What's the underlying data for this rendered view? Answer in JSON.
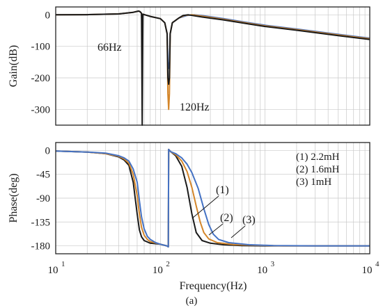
{
  "caption": "(a)",
  "chart_data": [
    {
      "type": "line",
      "name": "gain",
      "ylabel": "Gain(dB)",
      "xscale": "log",
      "xlim": [
        10,
        10000
      ],
      "ylim": [
        -350,
        25
      ],
      "yticks": [
        0,
        -100,
        -200,
        -300
      ],
      "ytick_labels": [
        "0",
        "-100",
        "-200",
        "-300"
      ],
      "grid": true,
      "annotations": [
        {
          "text": "66Hz",
          "x": 20,
          "y": -100
        },
        {
          "text": "120Hz",
          "x": 200,
          "y": -300
        }
      ],
      "series": [
        {
          "color": "#4472c4",
          "x": [
            10,
            20,
            40,
            55,
            62,
            64,
            66,
            67,
            68,
            80,
            100,
            110,
            116,
            118,
            120,
            122,
            124,
            130,
            150,
            180,
            210,
            260,
            400,
            700,
            1000,
            2000,
            5000,
            10000
          ],
          "y": [
            0,
            0.5,
            3,
            8,
            12,
            10,
            5,
            -60,
            2,
            -5,
            -12,
            -25,
            -60,
            -150,
            -170,
            -150,
            -60,
            -25,
            -10,
            -2,
            0,
            -3,
            -12,
            -25,
            -33,
            -45,
            -62,
            -74
          ]
        },
        {
          "color": "#d4862a",
          "x": [
            10,
            20,
            40,
            55,
            62,
            64,
            66,
            67,
            68,
            80,
            100,
            110,
            116,
            118,
            120,
            122,
            124,
            130,
            150,
            170,
            200,
            260,
            400,
            700,
            1000,
            2000,
            5000,
            10000
          ],
          "y": [
            0,
            0.5,
            3,
            8,
            12,
            10,
            5,
            -60,
            2,
            -5,
            -12,
            -25,
            -60,
            -250,
            -300,
            -250,
            -60,
            -25,
            -10,
            -2,
            0,
            -5,
            -14,
            -27,
            -35,
            -47,
            -64,
            -76
          ]
        },
        {
          "color": "#1a1a1a",
          "x": [
            10,
            20,
            40,
            55,
            62,
            64,
            66,
            67,
            68,
            80,
            100,
            110,
            116,
            118,
            120,
            122,
            124,
            130,
            150,
            165,
            185,
            250,
            400,
            700,
            1000,
            2000,
            5000,
            10000
          ],
          "y": [
            0,
            0.5,
            3,
            8,
            12,
            10,
            5,
            -350,
            2,
            -5,
            -12,
            -25,
            -60,
            -200,
            -220,
            -200,
            -60,
            -25,
            -10,
            -2,
            0,
            -7,
            -16,
            -29,
            -37,
            -49,
            -66,
            -78
          ]
        }
      ]
    },
    {
      "type": "line",
      "name": "phase",
      "xlabel": "Frequency(Hz)",
      "ylabel": "Phase(deg)",
      "xscale": "log",
      "xlim": [
        10,
        10000
      ],
      "xticks": [
        10,
        100,
        1000,
        10000
      ],
      "xtick_labels": [
        [
          "10",
          "1"
        ],
        [
          "10",
          "2"
        ],
        [
          "10",
          "3"
        ],
        [
          "10",
          "4"
        ]
      ],
      "ylim": [
        -195,
        15
      ],
      "yticks": [
        0,
        -45,
        -90,
        -135,
        -180
      ],
      "ytick_labels": [
        "0",
        "-45",
        "-90",
        "-135",
        "-180"
      ],
      "grid": true,
      "legend_position": "top-right",
      "legend": [
        {
          "text": "(1) 2.2mH",
          "color": "#1a1a1a"
        },
        {
          "text": "(2) 1.6mH",
          "color": "#d4862a"
        },
        {
          "text": "(3) 1mH",
          "color": "#4472c4"
        }
      ],
      "curve_labels": [
        {
          "text": "(1)",
          "x": 380,
          "y": -75
        },
        {
          "text": "(2)",
          "x": 480,
          "y": -130
        },
        {
          "text": "(3)",
          "x": 760,
          "y": -137
        }
      ],
      "series": [
        {
          "color": "#1a1a1a",
          "x": [
            10,
            20,
            30,
            40,
            45,
            50,
            55,
            60,
            63,
            66,
            70,
            80,
            100,
            115,
            119,
            120,
            125,
            140,
            160,
            180,
            200,
            220,
            250,
            300,
            400,
            600,
            1000,
            3000,
            10000
          ],
          "y": [
            -1,
            -3,
            -6,
            -12,
            -18,
            -28,
            -60,
            -120,
            -150,
            -163,
            -170,
            -175,
            -177,
            -180,
            -182,
            2,
            -2,
            -10,
            -30,
            -70,
            -120,
            -155,
            -170,
            -175,
            -178,
            -179.5,
            -180,
            -180,
            -180
          ]
        },
        {
          "color": "#d4862a",
          "x": [
            10,
            20,
            30,
            40,
            45,
            50,
            55,
            60,
            63,
            66,
            70,
            75,
            80,
            100,
            115,
            119,
            120,
            125,
            140,
            160,
            180,
            200,
            220,
            240,
            260,
            290,
            350,
            500,
            800,
            1500,
            10000
          ],
          "y": [
            -1,
            -3,
            -6,
            -11,
            -16,
            -24,
            -45,
            -85,
            -120,
            -145,
            -160,
            -168,
            -172,
            -177,
            -180,
            -182,
            2,
            -2,
            -8,
            -20,
            -40,
            -70,
            -105,
            -135,
            -155,
            -167,
            -174,
            -177.5,
            -179,
            -180,
            -180
          ]
        },
        {
          "color": "#4472c4",
          "x": [
            10,
            20,
            30,
            40,
            45,
            50,
            55,
            60,
            63,
            66,
            70,
            75,
            80,
            90,
            100,
            115,
            119,
            120,
            125,
            140,
            160,
            180,
            200,
            230,
            260,
            290,
            320,
            360,
            450,
            700,
            1200,
            3000,
            10000
          ],
          "y": [
            -1,
            -3,
            -5,
            -10,
            -14,
            -20,
            -35,
            -60,
            -95,
            -125,
            -148,
            -162,
            -168,
            -174,
            -177,
            -180,
            -182,
            2,
            -2,
            -6,
            -14,
            -26,
            -42,
            -72,
            -110,
            -140,
            -158,
            -168,
            -174,
            -178,
            -179.5,
            -180,
            -180
          ]
        }
      ]
    }
  ]
}
